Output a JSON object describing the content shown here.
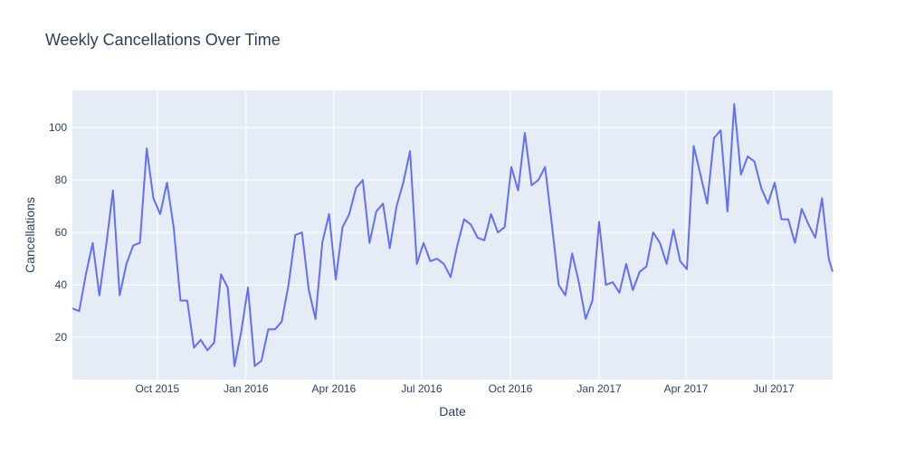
{
  "chart_data": {
    "type": "line",
    "title": "Weekly Cancellations Over Time",
    "xlabel": "Date",
    "ylabel": "Cancellations",
    "x_range": [
      "2015-07-05",
      "2017-08-31"
    ],
    "y_range": [
      3.8,
      114.2
    ],
    "yticks": [
      20,
      40,
      60,
      80,
      100
    ],
    "xticks": [
      {
        "date": "2015-10-01",
        "label": "Oct 2015"
      },
      {
        "date": "2016-01-01",
        "label": "Jan 2016"
      },
      {
        "date": "2016-04-01",
        "label": "Apr 2016"
      },
      {
        "date": "2016-07-01",
        "label": "Jul 2016"
      },
      {
        "date": "2016-10-01",
        "label": "Oct 2016"
      },
      {
        "date": "2017-01-01",
        "label": "Jan 2017"
      },
      {
        "date": "2017-04-01",
        "label": "Apr 2017"
      },
      {
        "date": "2017-07-01",
        "label": "Jul 2017"
      }
    ],
    "grid": true,
    "colors": {
      "line": "#636efa",
      "plot_bg": "#e5ecf6",
      "grid": "#ffffff",
      "text": "#2a3f5f"
    },
    "series": [
      {
        "x": [
          "2015-07-05",
          "2015-07-12",
          "2015-07-19",
          "2015-07-26",
          "2015-08-02",
          "2015-08-09",
          "2015-08-16",
          "2015-08-23",
          "2015-08-30",
          "2015-09-06",
          "2015-09-13",
          "2015-09-20",
          "2015-09-27",
          "2015-10-04",
          "2015-10-11",
          "2015-10-18",
          "2015-10-25",
          "2015-11-01",
          "2015-11-08",
          "2015-11-15",
          "2015-11-22",
          "2015-11-29",
          "2015-12-06",
          "2015-12-13",
          "2015-12-20",
          "2015-12-27",
          "2016-01-03",
          "2016-01-10",
          "2016-01-17",
          "2016-01-24",
          "2016-01-31",
          "2016-02-07",
          "2016-02-14",
          "2016-02-21",
          "2016-02-28",
          "2016-03-06",
          "2016-03-13",
          "2016-03-20",
          "2016-03-27",
          "2016-04-03",
          "2016-04-10",
          "2016-04-17",
          "2016-04-24",
          "2016-05-01",
          "2016-05-08",
          "2016-05-15",
          "2016-05-22",
          "2016-05-29",
          "2016-06-05",
          "2016-06-12",
          "2016-06-19",
          "2016-06-26",
          "2016-07-03",
          "2016-07-10",
          "2016-07-17",
          "2016-07-24",
          "2016-07-31",
          "2016-08-07",
          "2016-08-14",
          "2016-08-21",
          "2016-08-28",
          "2016-09-04",
          "2016-09-11",
          "2016-09-18",
          "2016-09-25",
          "2016-10-02",
          "2016-10-09",
          "2016-10-16",
          "2016-10-23",
          "2016-10-30",
          "2016-11-06",
          "2016-11-13",
          "2016-11-20",
          "2016-11-27",
          "2016-12-04",
          "2016-12-11",
          "2016-12-18",
          "2016-12-25",
          "2017-01-01",
          "2017-01-08",
          "2017-01-15",
          "2017-01-22",
          "2017-01-29",
          "2017-02-05",
          "2017-02-12",
          "2017-02-19",
          "2017-02-26",
          "2017-03-05",
          "2017-03-12",
          "2017-03-19",
          "2017-03-26",
          "2017-04-02",
          "2017-04-09",
          "2017-04-16",
          "2017-04-23",
          "2017-04-30",
          "2017-05-07",
          "2017-05-14",
          "2017-05-21",
          "2017-05-28",
          "2017-06-04",
          "2017-06-11",
          "2017-06-18",
          "2017-06-25",
          "2017-07-02",
          "2017-07-09",
          "2017-07-16",
          "2017-07-23",
          "2017-07-30",
          "2017-08-06",
          "2017-08-13",
          "2017-08-20",
          "2017-08-27",
          "2017-08-31"
        ],
        "y": [
          31,
          30,
          44,
          56,
          36,
          55,
          76,
          36,
          48,
          55,
          56,
          92,
          73,
          67,
          79,
          62,
          34,
          34,
          16,
          19,
          15,
          18,
          44,
          39,
          9,
          22,
          39,
          9,
          11,
          23,
          23,
          26,
          40,
          59,
          60,
          38,
          27,
          56,
          67,
          42,
          62,
          67,
          77,
          80,
          56,
          68,
          71,
          54,
          70,
          79,
          91,
          48,
          56,
          49,
          50,
          48,
          43,
          55,
          65,
          63,
          58,
          57,
          67,
          60,
          62,
          85,
          76,
          98,
          78,
          80,
          85,
          63,
          40,
          36,
          52,
          41,
          27,
          34,
          64,
          40,
          41,
          37,
          48,
          38,
          45,
          47,
          60,
          56,
          48,
          61,
          49,
          46,
          93,
          82,
          71,
          96,
          99,
          68,
          109,
          82,
          89,
          87,
          77,
          71,
          79,
          65,
          65,
          56,
          69,
          63,
          58,
          73,
          50,
          45
        ]
      }
    ]
  }
}
